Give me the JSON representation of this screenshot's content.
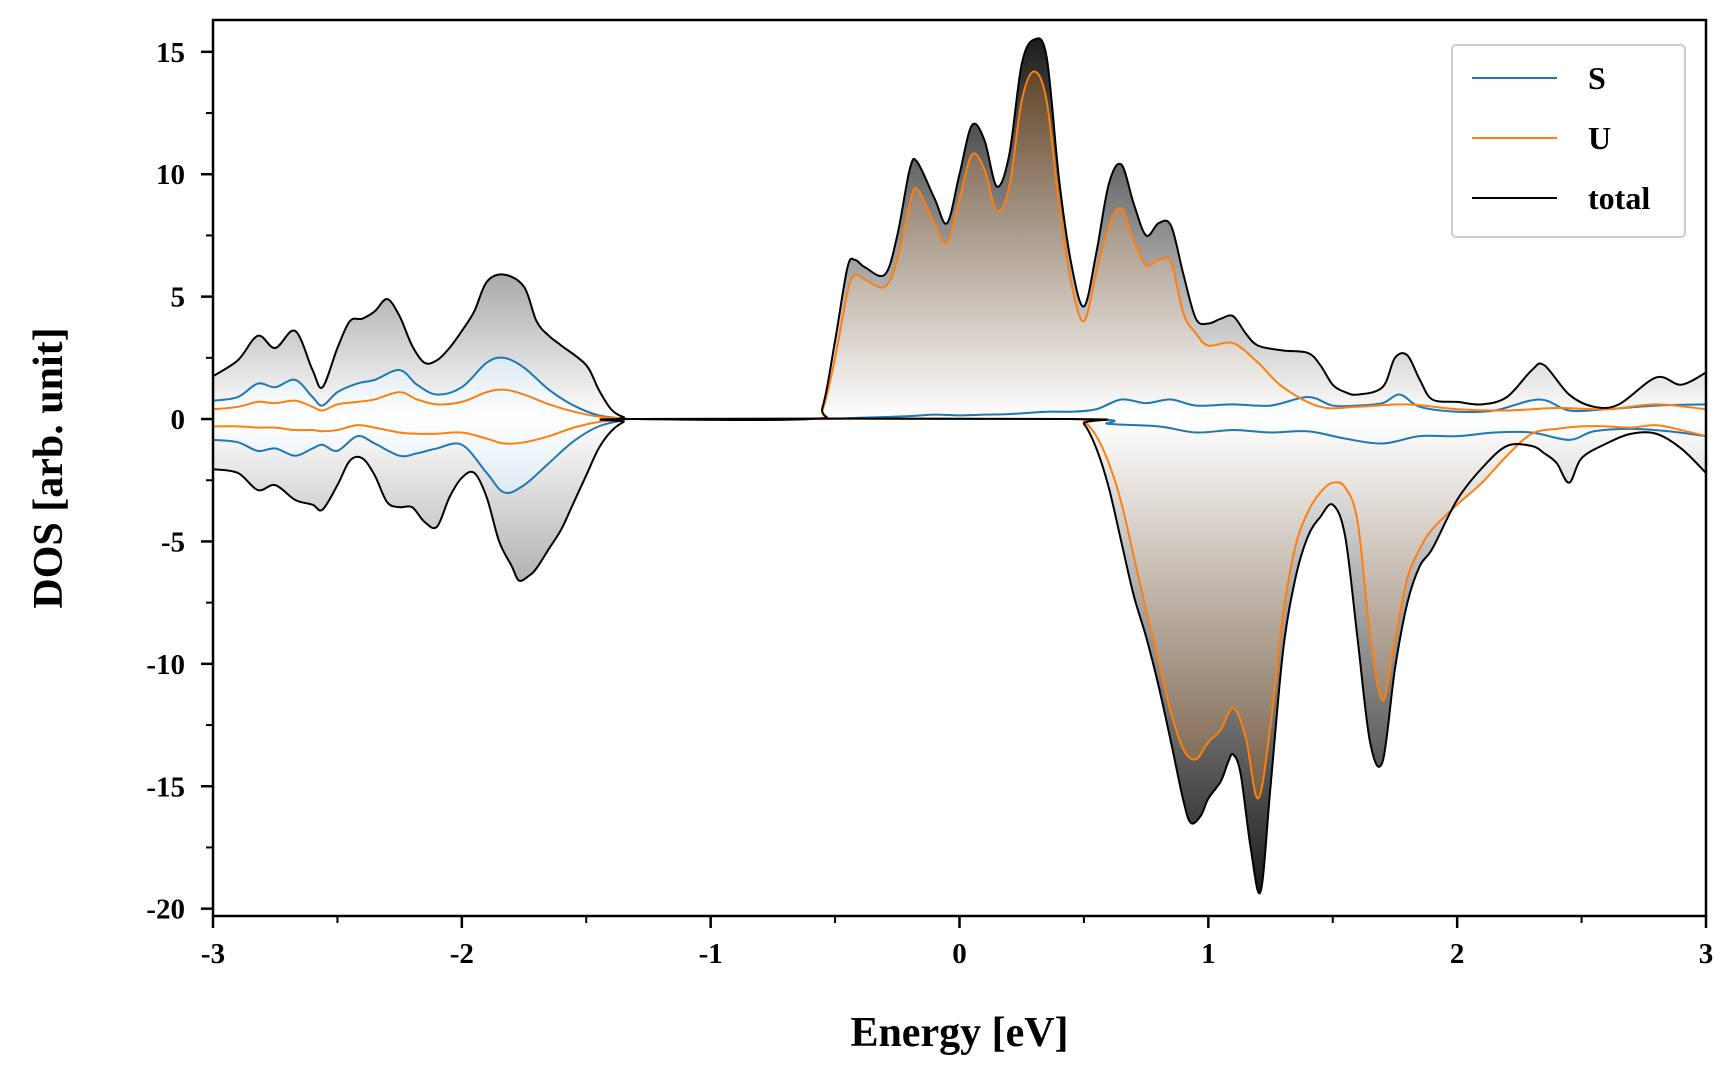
{
  "chart_data": {
    "type": "area",
    "xlabel": "Energy [eV]",
    "ylabel": "DOS [arb. unit]",
    "xlim": [
      -3,
      3
    ],
    "ylim": [
      -20.3,
      16.3
    ],
    "xticks": [
      -3,
      -2,
      -1,
      0,
      1,
      2,
      3
    ],
    "xtick_labels": [
      "-3",
      "-2",
      "-1",
      "0",
      "1",
      "2",
      "3"
    ],
    "yticks": [
      15,
      10,
      5,
      0,
      -5,
      -10,
      -15,
      -20
    ],
    "ytick_labels": [
      "15",
      "10",
      "5",
      "0",
      "-5",
      "-10",
      "-15",
      "-20"
    ],
    "grid": false,
    "legend_position": "top-right",
    "colors": {
      "S": "#1f77b4",
      "U": "#ff7f0e",
      "total": "#000000",
      "fill_S": "#1f77b4",
      "fill_U": "#4a2a0a",
      "fill_total": "#111111"
    },
    "series": [
      {
        "name": "S",
        "x_up": [
          -3.0,
          -2.9,
          -2.82,
          -2.75,
          -2.67,
          -2.6,
          -2.56,
          -2.5,
          -2.42,
          -2.35,
          -2.25,
          -2.18,
          -2.1,
          -2.0,
          -1.9,
          -1.83,
          -1.75,
          -1.65,
          -1.55,
          -1.45,
          -1.35,
          -1.3,
          -0.6,
          -0.4,
          -0.2,
          -0.1,
          0.0,
          0.1,
          0.2,
          0.35,
          0.45,
          0.55,
          0.65,
          0.75,
          0.85,
          0.95,
          1.1,
          1.25,
          1.4,
          1.5,
          1.6,
          1.7,
          1.77,
          1.85,
          2.0,
          2.15,
          2.33,
          2.45,
          2.6,
          2.8,
          3.0
        ],
        "up": [
          0.75,
          0.9,
          1.45,
          1.3,
          1.6,
          0.9,
          0.55,
          1.1,
          1.45,
          1.6,
          2.0,
          1.4,
          1.0,
          1.3,
          2.3,
          2.5,
          2.1,
          1.2,
          0.55,
          0.15,
          0.02,
          0.0,
          0.0,
          0.05,
          0.12,
          0.18,
          0.15,
          0.18,
          0.2,
          0.3,
          0.3,
          0.4,
          0.8,
          0.65,
          0.8,
          0.55,
          0.6,
          0.55,
          0.9,
          0.55,
          0.55,
          0.65,
          1.0,
          0.5,
          0.3,
          0.35,
          0.8,
          0.35,
          0.4,
          0.55,
          0.6
        ],
        "x_down": [
          -3.0,
          -2.9,
          -2.82,
          -2.75,
          -2.67,
          -2.6,
          -2.56,
          -2.5,
          -2.42,
          -2.35,
          -2.25,
          -2.18,
          -2.1,
          -2.0,
          -1.9,
          -1.83,
          -1.75,
          -1.65,
          -1.55,
          -1.45,
          -1.35,
          -1.3,
          0.45,
          0.6,
          0.8,
          0.95,
          1.1,
          1.25,
          1.4,
          1.55,
          1.7,
          1.85,
          2.0,
          2.15,
          2.3,
          2.45,
          2.55,
          2.7,
          2.85,
          3.0
        ],
        "down": [
          -0.85,
          -0.95,
          -1.3,
          -1.2,
          -1.5,
          -1.2,
          -1.05,
          -1.3,
          -0.7,
          -1.0,
          -1.5,
          -1.4,
          -1.2,
          -1.05,
          -2.2,
          -3.0,
          -2.7,
          -1.8,
          -0.9,
          -0.3,
          -0.05,
          0.0,
          0.0,
          -0.2,
          -0.3,
          -0.55,
          -0.45,
          -0.55,
          -0.5,
          -0.8,
          -1.0,
          -0.7,
          -0.7,
          -0.55,
          -0.55,
          -0.85,
          -0.5,
          -0.4,
          -0.5,
          -0.7
        ]
      },
      {
        "name": "U",
        "x_up": [
          -3.0,
          -2.9,
          -2.82,
          -2.75,
          -2.67,
          -2.6,
          -2.56,
          -2.5,
          -2.42,
          -2.35,
          -2.25,
          -2.18,
          -2.1,
          -2.0,
          -1.9,
          -1.83,
          -1.75,
          -1.65,
          -1.55,
          -1.45,
          -1.35,
          -1.3,
          -0.6,
          -0.55,
          -0.5,
          -0.45,
          -0.42,
          -0.38,
          -0.3,
          -0.25,
          -0.2,
          -0.17,
          -0.1,
          -0.05,
          0.0,
          0.05,
          0.1,
          0.15,
          0.2,
          0.25,
          0.3,
          0.35,
          0.4,
          0.45,
          0.5,
          0.55,
          0.6,
          0.65,
          0.7,
          0.75,
          0.8,
          0.85,
          0.9,
          0.95,
          1.0,
          1.1,
          1.2,
          1.3,
          1.45,
          1.6,
          1.8,
          2.0,
          2.2,
          2.4,
          2.6,
          2.8,
          3.0
        ],
        "up": [
          0.4,
          0.5,
          0.7,
          0.65,
          0.75,
          0.5,
          0.35,
          0.6,
          0.7,
          0.8,
          1.1,
          0.8,
          0.6,
          0.7,
          1.1,
          1.2,
          1.0,
          0.6,
          0.3,
          0.1,
          0.02,
          0.0,
          0.0,
          0.4,
          2.5,
          5.2,
          5.9,
          5.7,
          5.4,
          6.5,
          8.8,
          9.4,
          8.0,
          7.2,
          9.0,
          10.8,
          10.2,
          8.5,
          9.5,
          13.0,
          14.2,
          13.0,
          8.8,
          5.5,
          4.0,
          6.0,
          7.9,
          8.6,
          7.3,
          6.3,
          6.5,
          6.4,
          4.3,
          3.5,
          3.0,
          3.1,
          2.3,
          1.3,
          0.5,
          0.5,
          0.6,
          0.4,
          0.35,
          0.45,
          0.4,
          0.6,
          0.4
        ],
        "x_down": [
          -3.0,
          -2.9,
          -2.82,
          -2.75,
          -2.67,
          -2.6,
          -2.56,
          -2.5,
          -2.42,
          -2.35,
          -2.25,
          -2.18,
          -2.1,
          -2.0,
          -1.9,
          -1.83,
          -1.75,
          -1.65,
          -1.55,
          -1.45,
          -1.35,
          -1.3,
          0.45,
          0.5,
          0.55,
          0.6,
          0.65,
          0.7,
          0.75,
          0.8,
          0.85,
          0.9,
          0.95,
          1.0,
          1.05,
          1.1,
          1.15,
          1.2,
          1.25,
          1.3,
          1.35,
          1.4,
          1.45,
          1.5,
          1.55,
          1.6,
          1.65,
          1.7,
          1.75,
          1.8,
          1.85,
          1.9,
          2.0,
          2.1,
          2.2,
          2.3,
          2.4,
          2.5,
          2.6,
          2.7,
          2.8,
          2.9,
          3.0
        ],
        "down": [
          -0.3,
          -0.3,
          -0.35,
          -0.35,
          -0.45,
          -0.45,
          -0.5,
          -0.45,
          -0.25,
          -0.35,
          -0.55,
          -0.6,
          -0.6,
          -0.55,
          -0.8,
          -1.0,
          -0.95,
          -0.7,
          -0.35,
          -0.12,
          -0.02,
          0.0,
          0.0,
          -0.1,
          -0.7,
          -1.8,
          -3.4,
          -5.6,
          -7.8,
          -9.9,
          -12.0,
          -13.5,
          -13.9,
          -13.2,
          -12.7,
          -11.8,
          -13.0,
          -15.5,
          -12.5,
          -8.0,
          -5.2,
          -3.8,
          -3.0,
          -2.6,
          -2.8,
          -4.2,
          -8.8,
          -11.5,
          -9.0,
          -6.5,
          -5.3,
          -4.5,
          -3.5,
          -2.6,
          -1.5,
          -0.6,
          -0.4,
          -0.3,
          -0.3,
          -0.35,
          -0.25,
          -0.45,
          -0.7
        ]
      },
      {
        "name": "total",
        "x_up": [
          -3.0,
          -2.9,
          -2.82,
          -2.75,
          -2.67,
          -2.6,
          -2.56,
          -2.5,
          -2.45,
          -2.4,
          -2.35,
          -2.3,
          -2.25,
          -2.2,
          -2.15,
          -2.1,
          -2.05,
          -2.0,
          -1.95,
          -1.9,
          -1.83,
          -1.75,
          -1.7,
          -1.65,
          -1.6,
          -1.5,
          -1.45,
          -1.4,
          -1.35,
          -1.3,
          -0.6,
          -0.55,
          -0.5,
          -0.45,
          -0.42,
          -0.38,
          -0.3,
          -0.25,
          -0.2,
          -0.17,
          -0.1,
          -0.05,
          0.0,
          0.05,
          0.1,
          0.15,
          0.2,
          0.25,
          0.3,
          0.35,
          0.4,
          0.45,
          0.5,
          0.55,
          0.6,
          0.65,
          0.7,
          0.75,
          0.8,
          0.85,
          0.9,
          0.95,
          1.0,
          1.05,
          1.1,
          1.15,
          1.2,
          1.3,
          1.4,
          1.45,
          1.5,
          1.55,
          1.6,
          1.7,
          1.75,
          1.8,
          1.85,
          1.9,
          2.0,
          2.1,
          2.2,
          2.3,
          2.35,
          2.45,
          2.55,
          2.65,
          2.8,
          2.9,
          3.0
        ],
        "up": [
          1.75,
          2.4,
          3.4,
          2.9,
          3.6,
          2.0,
          1.3,
          2.9,
          4.0,
          4.1,
          4.4,
          4.9,
          4.2,
          3.0,
          2.3,
          2.4,
          2.9,
          3.6,
          4.4,
          5.6,
          5.9,
          5.4,
          4.0,
          3.4,
          3.0,
          2.2,
          1.2,
          0.4,
          0.08,
          0.0,
          0.0,
          0.5,
          3.2,
          6.2,
          6.5,
          6.2,
          5.9,
          7.5,
          10.2,
          10.5,
          9.0,
          8.0,
          10.0,
          12.0,
          11.4,
          9.5,
          10.8,
          14.5,
          15.5,
          14.8,
          9.8,
          6.3,
          4.6,
          6.8,
          9.6,
          10.4,
          8.8,
          7.5,
          8.0,
          7.9,
          5.9,
          4.1,
          3.9,
          4.1,
          4.2,
          3.5,
          3.0,
          2.8,
          2.7,
          2.2,
          1.4,
          1.1,
          1.0,
          1.3,
          2.5,
          2.6,
          1.6,
          0.8,
          0.7,
          0.6,
          0.9,
          2.0,
          2.2,
          1.0,
          0.5,
          0.6,
          1.7,
          1.4,
          1.9
        ],
        "x_down": [
          -3.0,
          -2.9,
          -2.82,
          -2.75,
          -2.67,
          -2.6,
          -2.56,
          -2.5,
          -2.45,
          -2.4,
          -2.35,
          -2.3,
          -2.25,
          -2.2,
          -2.15,
          -2.1,
          -2.05,
          -2.0,
          -1.95,
          -1.9,
          -1.85,
          -1.8,
          -1.77,
          -1.73,
          -1.7,
          -1.65,
          -1.6,
          -1.55,
          -1.5,
          -1.45,
          -1.4,
          -1.35,
          -1.3,
          0.45,
          0.5,
          0.55,
          0.6,
          0.65,
          0.7,
          0.75,
          0.8,
          0.85,
          0.9,
          0.93,
          0.97,
          1.0,
          1.05,
          1.08,
          1.1,
          1.13,
          1.17,
          1.21,
          1.25,
          1.3,
          1.35,
          1.4,
          1.45,
          1.5,
          1.55,
          1.6,
          1.65,
          1.7,
          1.75,
          1.8,
          1.85,
          1.9,
          2.0,
          2.1,
          2.2,
          2.3,
          2.35,
          2.4,
          2.45,
          2.5,
          2.6,
          2.7,
          2.8,
          2.9,
          3.0
        ],
        "down": [
          -2.05,
          -2.2,
          -2.9,
          -2.7,
          -3.3,
          -3.5,
          -3.7,
          -2.7,
          -1.7,
          -1.6,
          -2.3,
          -3.4,
          -3.6,
          -3.6,
          -4.2,
          -4.4,
          -3.2,
          -2.4,
          -2.2,
          -3.2,
          -5.0,
          -6.0,
          -6.6,
          -6.4,
          -6.1,
          -5.3,
          -4.5,
          -3.4,
          -2.3,
          -1.2,
          -0.5,
          -0.12,
          0.0,
          0.0,
          -0.2,
          -1.2,
          -2.8,
          -5.0,
          -7.2,
          -8.9,
          -10.9,
          -13.2,
          -15.6,
          -16.5,
          -16.2,
          -15.5,
          -14.8,
          -14.0,
          -13.7,
          -14.5,
          -17.5,
          -19.3,
          -15.0,
          -9.5,
          -6.5,
          -4.8,
          -4.0,
          -3.5,
          -4.8,
          -9.0,
          -13.2,
          -14.0,
          -10.2,
          -7.5,
          -6.0,
          -5.3,
          -3.3,
          -2.0,
          -1.1,
          -1.1,
          -1.4,
          -1.8,
          -2.6,
          -1.6,
          -1.0,
          -0.6,
          -0.6,
          -1.2,
          -2.2
        ]
      }
    ]
  }
}
